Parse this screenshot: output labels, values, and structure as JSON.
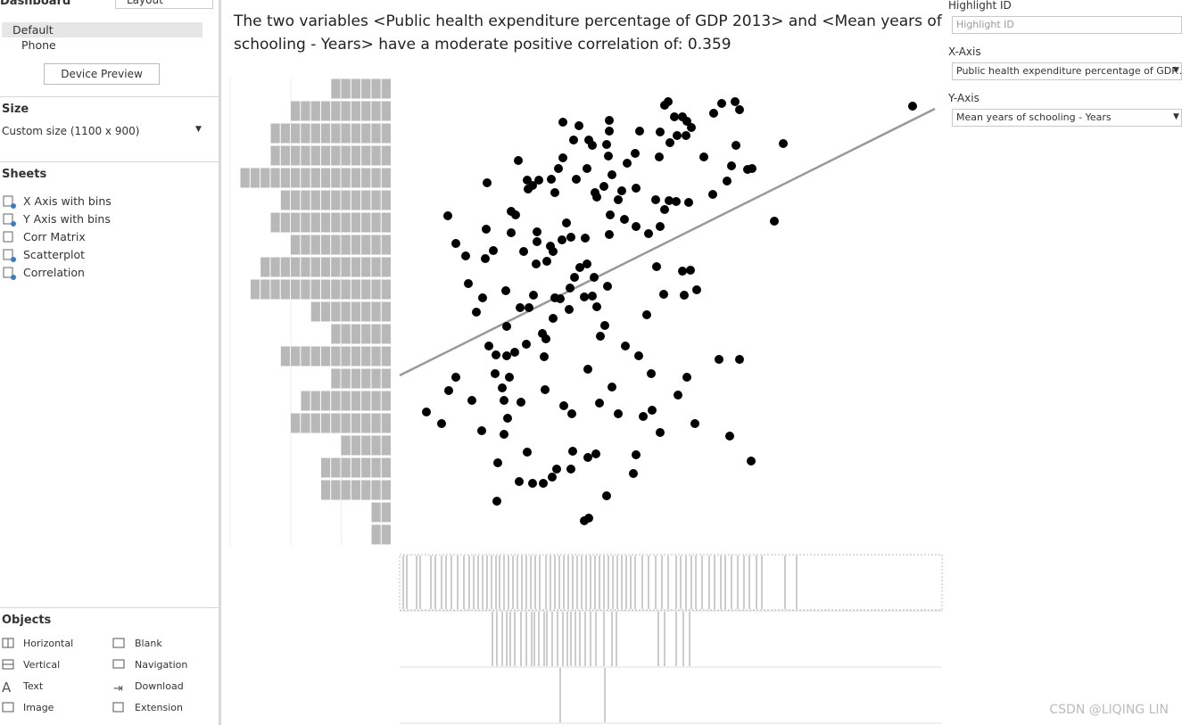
{
  "sidebar": {
    "tabs": [
      "Dashboard",
      "Layout"
    ],
    "devices": [
      "Default",
      "Phone"
    ],
    "device_preview": "Device Preview",
    "size_heading": "Size",
    "size_value": "Custom size (1100 x 900)",
    "sheets_heading": "Sheets",
    "sheets": [
      "X Axis with bins",
      "Y Axis with bins",
      "Corr Matrix",
      "Scatterplot",
      "Correlation"
    ],
    "objects_heading": "Objects",
    "objects": [
      "Horizontal",
      "Blank",
      "Vertical",
      "Navigation",
      "Text",
      "Download",
      "Image",
      "Extension"
    ]
  },
  "filters": {
    "highlight_label": "Highlight ID",
    "highlight_placeholder": "Highlight ID",
    "x_label": "X-Axis",
    "x_value": "Public health expenditure percentage of GDP...",
    "y_label": "Y-Axis",
    "y_value": "Mean years of schooling - Years"
  },
  "watermark": "CSDN @LIQING LIN",
  "chart_data": {
    "type": "scatter",
    "title": "The two variables <Public health expenditure percentage of GDP 2013> and <Mean years of schooling - Years> have a moderate positive correlation of: 0.359",
    "color": "#000000",
    "xlim": [
      0,
      12
    ],
    "ylim": [
      0,
      10.5
    ],
    "x": [
      11.5,
      8.6,
      8.4,
      7.88,
      7.4,
      7.62,
      7.16,
      6.62,
      6.44,
      6.24,
      5.84,
      5.66,
      5.64,
      5.46,
      5.36,
      5.3,
      5.24,
      5.06,
      4.9,
      4.76,
      4.64,
      4.48,
      4.4,
      4.22,
      4.22,
      4.24,
      4.14,
      3.86,
      3.68,
      3.84,
      3.88,
      3.52,
      3.42,
      3.22,
      2.98,
      2.68,
      2.2,
      2.18,
      2.86,
      2.34,
      1.84,
      2.42,
      2.72,
      2.34,
      1.62,
      0.94,
      0.6,
      1.1,
      1.26,
      2.14,
      2.46,
      2.3,
      3.26,
      2.16,
      2.4,
      2.58,
      2,
      2.84,
      3.24,
      3.2,
      3.28,
      2.4,
      3.44,
      1.72,
      1.86,
      1.54,
      2.38,
      2.7,
      2.9,
      3,
      3.48,
      3.6,
      3.8,
      3.92,
      3.82,
      4.14,
      4.32,
      4.42,
      4.6,
      4.5,
      4.66,
      4.36,
      4.04,
      4.2,
      5.54,
      5.92,
      6.38,
      6.66,
      6.34,
      6.52,
      5.76,
      1.48,
      1.26,
      1.92,
      2.1,
      2.78,
      3.06,
      3.3,
      3.44,
      3.08,
      3.38,
      3.64,
      3.84,
      4.16,
      4.7,
      1.94,
      1.08,
      2.5,
      3.08,
      3.74,
      2.5,
      2.6,
      4.72,
      5.04,
      5.3,
      5.58,
      5.84,
      5.94,
      6.04,
      5.74,
      6.2,
      6.48,
      7.02,
      7.34,
      7.44,
      7.8,
      7.9,
      7.54,
      6.82,
      1.96,
      2.86,
      2.98,
      2.88,
      3.4,
      3.48,
      3.56,
      3.66,
      3.96,
      4.2,
      4.38,
      4.42,
      4.58,
      4.76,
      4.9,
      4.98,
      5.3,
      5.1,
      5.28,
      5.82,
      2.66,
      3.12,
      3.9,
      4.24,
      4.32,
      4.64,
      4.68,
      3.66,
      4.02,
      4.7,
      4.7,
      5.38,
      5.84,
      6.06,
      6.22,
      6.42,
      6.54,
      6.44,
      6.34,
      5.94,
      6.02,
      6.16,
      7.04,
      7.22,
      7.52,
      7.62
    ],
    "values": [
      9.86,
      9.02,
      7.28,
      1.9,
      2.46,
      4.18,
      4.18,
      2.74,
      3.78,
      3.38,
      2.54,
      3.04,
      3.86,
      2.9,
      4.26,
      2.04,
      1.62,
      4.48,
      2.96,
      3.56,
      1.12,
      3.2,
      2.06,
      1.98,
      3.96,
      0.62,
      0.56,
      2.96,
      3.14,
      1.72,
      2.12,
      1.72,
      1.54,
      1.4,
      1.4,
      1.44,
      1.86,
      1,
      2.1,
      2.5,
      2.58,
      2.86,
      3.22,
      3.26,
      3.26,
      2.74,
      3,
      3.48,
      3.78,
      3.86,
      3.78,
      3.54,
      3.5,
      4.28,
      4.26,
      4.34,
      4.48,
      4.52,
      4.24,
      4.76,
      4.64,
      4.92,
      5.1,
      5.24,
      5.56,
      5.88,
      5.72,
      5.34,
      5.34,
      5.62,
      5.56,
      5.54,
      5.3,
      6.02,
      5.78,
      5.58,
      5.6,
      5.36,
      4.94,
      4.7,
      5.82,
      6.02,
      6.24,
      6.32,
      5.18,
      5.64,
      5.62,
      5.74,
      6.16,
      6.18,
      6.26,
      6.5,
      6.78,
      6.44,
      6.62,
      6.6,
      6.32,
      6.38,
      6.6,
      6.82,
      6.72,
      6.86,
      6.92,
      6.9,
      6.98,
      7.1,
      7.4,
      7.02,
      7.04,
      7.24,
      7.5,
      7.42,
      7.42,
      7.32,
      7.16,
      7,
      7.16,
      7.54,
      7.74,
      7.76,
      7.72,
      7.7,
      7.88,
      8.18,
      8.52,
      8.44,
      8.46,
      8.98,
      8.72,
      8.14,
      8.2,
      8.08,
      8,
      8.22,
      7.92,
      8.46,
      8.7,
      8.22,
      8.46,
      7.92,
      7.82,
      8.06,
      8.32,
      7.76,
      7.96,
      8.02,
      8.58,
      8.8,
      8.72,
      8.64,
      8.2,
      9.1,
      9.1,
      8.98,
      9,
      8.74,
      9.5,
      9.42,
      9.54,
      9.3,
      9.3,
      9.28,
      9.04,
      9.2,
      9.2,
      9.38,
      9.52,
      9.62,
      9.88,
      9.96,
      9.62,
      9.7,
      9.92,
      9.96,
      9.78
    ],
    "trend_line": {
      "x": [
        0,
        12
      ],
      "y": [
        3.82,
        9.8
      ],
      "color": "#999999"
    },
    "y_histogram": {
      "bins": [
        0,
        0.5,
        1,
        1.5,
        2,
        2.5,
        3,
        3.5,
        4,
        4.5,
        5,
        5.5,
        6,
        6.5,
        7,
        7.5,
        8,
        8.5,
        9,
        9.5,
        10,
        10.5
      ],
      "counts": [
        2,
        2,
        7,
        7,
        5,
        10,
        9,
        6,
        11,
        6,
        8,
        14,
        13,
        10,
        12,
        11,
        15,
        12,
        12,
        10,
        6
      ],
      "ticks": [
        5,
        10
      ],
      "color": "#b8b8b8"
    },
    "x_strips": [
      [
        0.08,
        0.16,
        0.38,
        0.46,
        0.7,
        0.8,
        0.94,
        1.04,
        1.16,
        1.3,
        1.44,
        1.56,
        1.66,
        1.76,
        1.86,
        1.96,
        2.06,
        2.16,
        2.24,
        2.34,
        2.44,
        2.54,
        2.64,
        2.74,
        2.84,
        2.94,
        3.04,
        3.14,
        3.28,
        3.38,
        3.48,
        3.58,
        3.68,
        3.78,
        3.88,
        3.98,
        4.08,
        4.18,
        4.28,
        4.38,
        4.48,
        4.58,
        4.68,
        4.78,
        4.88,
        4.98,
        5.08,
        5.18,
        5.28,
        5.44,
        5.58,
        5.74,
        5.88,
        6.02,
        6.2,
        6.3,
        6.42,
        6.54,
        6.64,
        6.78,
        6.94,
        7.06,
        7.2,
        7.3,
        7.44,
        7.58,
        7.72,
        7.84,
        8,
        8.12,
        8.64,
        8.9
      ],
      [
        2.08,
        2.18,
        2.3,
        2.4,
        2.48,
        2.58,
        2.72,
        2.84,
        2.96,
        3.02,
        3.12,
        3.24,
        3.3,
        3.42,
        3.54,
        3.66,
        3.76,
        3.84,
        3.94,
        4.04,
        4.16,
        4.28,
        4.4,
        4.58,
        4.76,
        4.86,
        5.8,
        5.94,
        6.2,
        6.36,
        6.5
      ],
      [
        3.6,
        4.6
      ]
    ]
  }
}
